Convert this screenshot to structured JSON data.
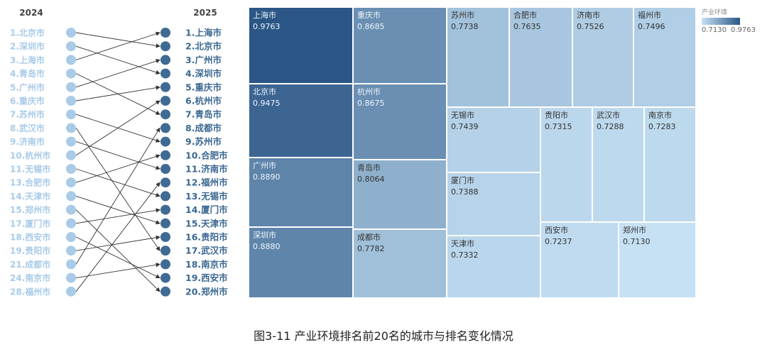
{
  "caption": "图3-11 产业环境排名前20名的城市与排名变化情况",
  "colors": {
    "dot_2024": "#a9cbe8",
    "dot_2025": "#3f6a94",
    "label_2024": "#a9cbe8",
    "label_2025": "#3a6791",
    "line": "#333333"
  },
  "chart_data": [
    {
      "type": "bump",
      "columns": [
        "2024",
        "2025"
      ],
      "left_labels": [
        "1.北京市",
        "2.深圳市",
        "3.上海市",
        "4.青岛市",
        "5.广州市",
        "6.重庆市",
        "7.苏州市",
        "8.武汉市",
        "9.济南市",
        "10.杭州市",
        "11.无锡市",
        "13.合肥市",
        "14.天津市",
        "15.郑州市",
        "17.厦门市",
        "18.西安市",
        "19.贵阳市",
        "21.成都市",
        "24.南京市",
        "28.福州市"
      ],
      "right_labels": [
        "1.上海市",
        "2.北京市",
        "3.广州市",
        "4.深圳市",
        "5.重庆市",
        "6.杭州市",
        "7.青岛市",
        "8.成都市",
        "9.苏州市",
        "10.合肥市",
        "11.济南市",
        "12.福州市",
        "13.无锡市",
        "14.厦门市",
        "15.天津市",
        "16.贵阳市",
        "17.武汉市",
        "18.南京市",
        "19.西安市",
        "20.郑州市"
      ],
      "links": [
        {
          "from": 1,
          "to": 2
        },
        {
          "from": 2,
          "to": 4
        },
        {
          "from": 3,
          "to": 1
        },
        {
          "from": 4,
          "to": 7
        },
        {
          "from": 5,
          "to": 3
        },
        {
          "from": 6,
          "to": 5
        },
        {
          "from": 7,
          "to": 9
        },
        {
          "from": 8,
          "to": 17
        },
        {
          "from": 9,
          "to": 11
        },
        {
          "from": 10,
          "to": 6
        },
        {
          "from": 11,
          "to": 13
        },
        {
          "from": 13,
          "to": 10
        },
        {
          "from": 14,
          "to": 15
        },
        {
          "from": 15,
          "to": 20
        },
        {
          "from": 17,
          "to": 14
        },
        {
          "from": 18,
          "to": 19
        },
        {
          "from": 19,
          "to": 16
        },
        {
          "from": 21,
          "to": 8
        },
        {
          "from": 24,
          "to": 18
        },
        {
          "from": 28,
          "to": 12
        }
      ]
    },
    {
      "type": "treemap",
      "legend_title": "产业环境",
      "color_range": [
        0.713,
        0.9763
      ],
      "color_range_labels": [
        "0.7130",
        "0.9763"
      ],
      "items": [
        {
          "name": "上海市",
          "value": "0.9763"
        },
        {
          "name": "北京市",
          "value": "0.9475"
        },
        {
          "name": "广州市",
          "value": "0.8890"
        },
        {
          "name": "深圳市",
          "value": "0.8880"
        },
        {
          "name": "重庆市",
          "value": "0.8685"
        },
        {
          "name": "杭州市",
          "value": "0.8675"
        },
        {
          "name": "青岛市",
          "value": "0.8064"
        },
        {
          "name": "成都市",
          "value": "0.7782"
        },
        {
          "name": "苏州市",
          "value": "0.7738"
        },
        {
          "name": "合肥市",
          "value": "0.7635"
        },
        {
          "name": "济南市",
          "value": "0.7526"
        },
        {
          "name": "福州市",
          "value": "0.7496"
        },
        {
          "name": "无锡市",
          "value": "0.7439"
        },
        {
          "name": "贵阳市",
          "value": "0.7315"
        },
        {
          "name": "武汉市",
          "value": "0.7288"
        },
        {
          "name": "南京市",
          "value": "0.7283"
        },
        {
          "name": "厦门市",
          "value": "0.7388"
        },
        {
          "name": "天津市",
          "value": "0.7332"
        },
        {
          "name": "西安市",
          "value": "0.7237"
        },
        {
          "name": "郑州市",
          "value": "0.7130"
        }
      ]
    }
  ]
}
